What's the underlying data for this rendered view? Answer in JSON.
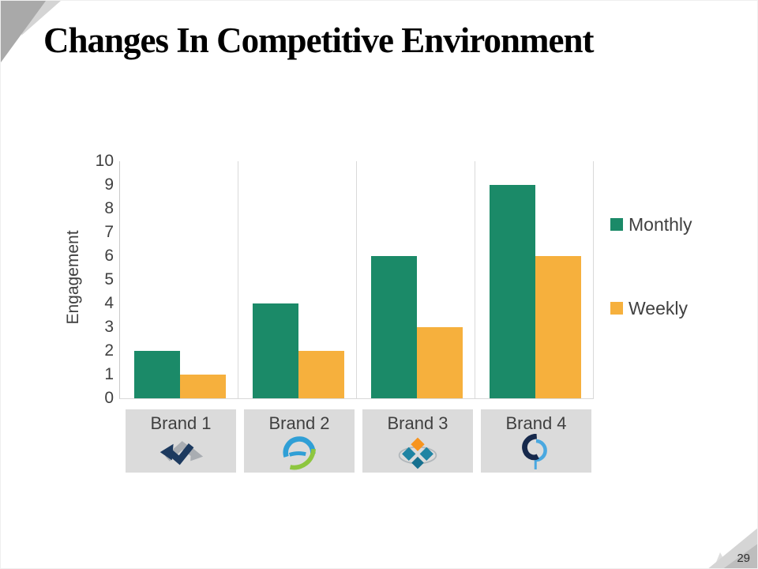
{
  "title": "Changes In Competitive Environment",
  "page_number": "29",
  "chart_data": {
    "type": "bar",
    "title": "",
    "categories": [
      "Brand 1",
      "Brand 2",
      "Brand 3",
      "Brand 4"
    ],
    "series": [
      {
        "name": "Monthly",
        "color": "#1b8a68",
        "values": [
          2,
          4,
          6,
          9
        ]
      },
      {
        "name": "Weekly",
        "color": "#f6b03d",
        "values": [
          1,
          2,
          3,
          6
        ]
      }
    ],
    "xlabel": "",
    "ylabel": "Engagement",
    "ylim": [
      0,
      10
    ],
    "yticks": [
      0,
      1,
      2,
      3,
      4,
      5,
      6,
      7,
      8,
      9,
      10
    ],
    "grid": "vertical-category-separators",
    "legend_position": "right",
    "category_logos": [
      "zigzag-arrows-icon",
      "globe-swoosh-icon",
      "diamond-cluster-icon",
      "ring-monogram-icon"
    ]
  },
  "colors": {
    "axis_text": "#404040",
    "gridline": "#d9d9d9",
    "category_box_bg": "#dbdbdb",
    "title_text": "#000000",
    "decoration_gray_dark": "#a9a9a9",
    "decoration_gray_light": "#d5d5d5"
  }
}
